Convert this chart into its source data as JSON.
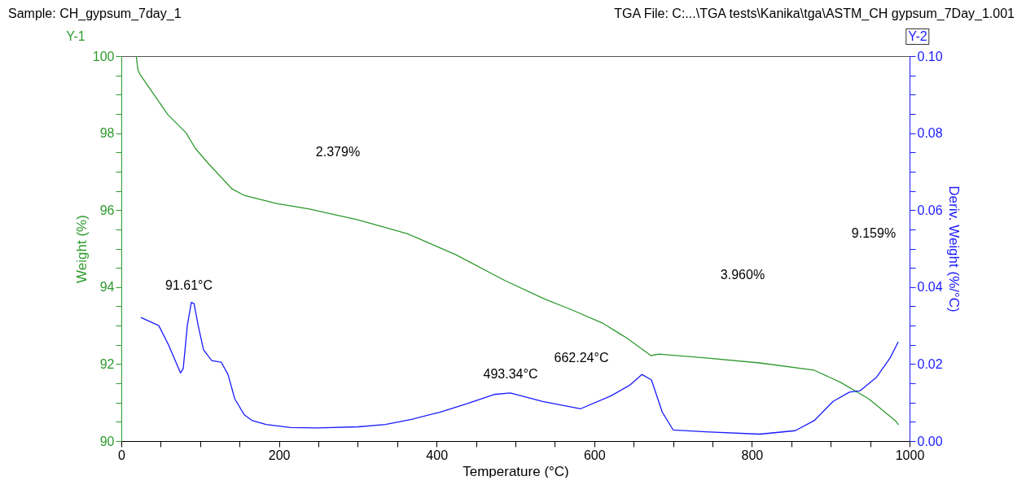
{
  "chart_data": {
    "type": "line",
    "title": "Sample: CH_gypsum_7day_1",
    "subtitle": "TGA File: C:...\\TGA tests\\Kanika\\tga\\ASTM_CH gypsum_7Day_1.001",
    "xlabel": "Temperature (°C)",
    "ylabel": "Weight (%)",
    "y2label": "Deriv. Weight (%/°C)",
    "xlim": [
      0,
      1000
    ],
    "xticks": [
      0,
      {
        "value": 50,
        "label": null
      },
      {
        "value": 100,
        "label": null
      },
      {
        "value": 150,
        "label": null
      },
      200,
      {
        "value": 250,
        "label": null
      },
      {
        "value": 300,
        "label": null
      },
      {
        "value": 350,
        "label": null
      },
      400,
      {
        "value": 450,
        "label": null
      },
      {
        "value": 500,
        "label": null
      },
      {
        "value": 550,
        "label": null
      },
      600,
      {
        "value": 650,
        "label": null
      },
      {
        "value": 700,
        "label": null
      },
      {
        "value": 750,
        "label": null
      },
      800,
      {
        "value": 850,
        "label": null
      },
      {
        "value": 900,
        "label": null
      },
      {
        "value": 950,
        "label": null
      },
      1000
    ],
    "ylim": [
      90,
      100
    ],
    "yticks": [
      90,
      {
        "value": 90.5,
        "label": null
      },
      {
        "value": 91,
        "label": null
      },
      {
        "value": 91.5,
        "label": null
      },
      92,
      {
        "value": 92.5,
        "label": null
      },
      {
        "value": 93,
        "label": null
      },
      {
        "value": 93.5,
        "label": null
      },
      94,
      {
        "value": 94.5,
        "label": null
      },
      {
        "value": 95,
        "label": null
      },
      {
        "value": 95.5,
        "label": null
      },
      96,
      {
        "value": 96.5,
        "label": null
      },
      {
        "value": 97,
        "label": null
      },
      {
        "value": 97.5,
        "label": null
      },
      98,
      {
        "value": 98.5,
        "label": null
      },
      {
        "value": 99,
        "label": null
      },
      {
        "value": 99.5,
        "label": null
      },
      100
    ],
    "y2lim": [
      0,
      0.1
    ],
    "y2ticks": [
      {
        "value": 0,
        "label": "0.00"
      },
      {
        "value": 0.005,
        "label": null
      },
      {
        "value": 0.01,
        "label": null
      },
      {
        "value": 0.015,
        "label": null
      },
      {
        "value": 0.02,
        "label": "0.02"
      },
      {
        "value": 0.025,
        "label": null
      },
      {
        "value": 0.03,
        "label": null
      },
      {
        "value": 0.035,
        "label": null
      },
      {
        "value": 0.04,
        "label": "0.04"
      },
      {
        "value": 0.045,
        "label": null
      },
      {
        "value": 0.05,
        "label": null
      },
      {
        "value": 0.055,
        "label": null
      },
      {
        "value": 0.06,
        "label": "0.06"
      },
      {
        "value": 0.065,
        "label": null
      },
      {
        "value": 0.07,
        "label": null
      },
      {
        "value": 0.075,
        "label": null
      },
      {
        "value": 0.08,
        "label": "0.08"
      },
      {
        "value": 0.085,
        "label": null
      },
      {
        "value": 0.09,
        "label": null
      },
      {
        "value": 0.095,
        "label": null
      },
      {
        "value": 0.1,
        "label": "0.10"
      }
    ],
    "grid": false,
    "marker": "none",
    "line_style": "solid",
    "series": [
      {
        "color": "#2e9a2e",
        "x": [
          19,
          21,
          23.5,
          59,
          82,
          94,
          109.5,
          140.5,
          156,
          197,
          238.5,
          300,
          362.6,
          424.6,
          486.6,
          538,
          569,
          610,
          641,
          672,
          682,
          741.7,
          809.9,
          879,
          913,
          948,
          982,
          986
        ],
        "values": [
          100,
          99.65,
          99.53,
          98.48,
          98.01,
          97.6,
          97.23,
          96.55,
          96.38,
          96.17,
          96.03,
          95.75,
          95.39,
          94.84,
          94.17,
          93.68,
          93.43,
          93.07,
          92.68,
          92.22,
          92.26,
          92.16,
          92.03,
          91.84,
          91.52,
          91.1,
          90.53,
          90.42
        ]
      },
      {
        "axis": "y2",
        "color": "#1a1aff",
        "x": [
          24.8,
          47.5,
          59.6,
          75.1,
          78.5,
          83.7,
          88.8,
          92.3,
          97.5,
          104.3,
          114.7,
          126.7,
          135.3,
          143.9,
          156,
          166.3,
          183.6,
          214.5,
          248.9,
          300.6,
          335,
          369.5,
          404,
          438.3,
          472.8,
          493.4,
          534.6,
          582.8,
          620.8,
          644.9,
          660.4,
          672.5,
          686.3,
          700,
          741.2,
          810,
          854.9,
          879,
          903,
          923.7,
          937.5,
          958.2,
          975.3,
          985.7
        ],
        "values": [
          0.0321,
          0.03,
          0.0251,
          0.0177,
          0.0188,
          0.03,
          0.036,
          0.0357,
          0.03,
          0.0237,
          0.0209,
          0.0205,
          0.0173,
          0.011,
          0.0068,
          0.0053,
          0.0043,
          0.0035,
          0.0034,
          0.0037,
          0.0043,
          0.0057,
          0.0075,
          0.0097,
          0.0121,
          0.0125,
          0.0103,
          0.0084,
          0.0117,
          0.0145,
          0.0173,
          0.0159,
          0.0075,
          0.0029,
          0.0024,
          0.0018,
          0.0027,
          0.0053,
          0.0103,
          0.0127,
          0.0131,
          0.0166,
          0.0216,
          0.0258
        ]
      }
    ],
    "annotations": [
      "Y-1",
      "Y-2",
      "91.61°C",
      "493.34°C",
      "662.24°C",
      "2.379%",
      "3.960%",
      "9.159%"
    ]
  }
}
